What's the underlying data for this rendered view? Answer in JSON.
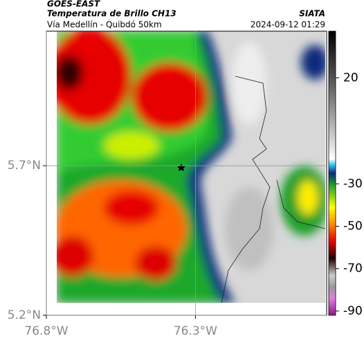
{
  "header": {
    "product": "GOES-EAST",
    "title": "Temperatura de Brillo CH13",
    "source": "SIATA",
    "subtitle": "Vía Medellín - Quibdó 50km",
    "datetime": "2024-09-12 01:29"
  },
  "map": {
    "xlim": [
      -76.8,
      -75.86
    ],
    "ylim": [
      5.2,
      6.15
    ],
    "xticks": [
      {
        "value": -76.8,
        "label": "76.8°W"
      },
      {
        "value": -76.3,
        "label": "76.3°W"
      }
    ],
    "yticks": [
      {
        "value": 5.2,
        "label": "5.2°N"
      },
      {
        "value": 5.7,
        "label": "5.7°N"
      }
    ]
  },
  "colorbar": {
    "lim": [
      -92,
      42
    ],
    "ticks": [
      20,
      -30,
      -50,
      -70,
      -90
    ]
  }
}
